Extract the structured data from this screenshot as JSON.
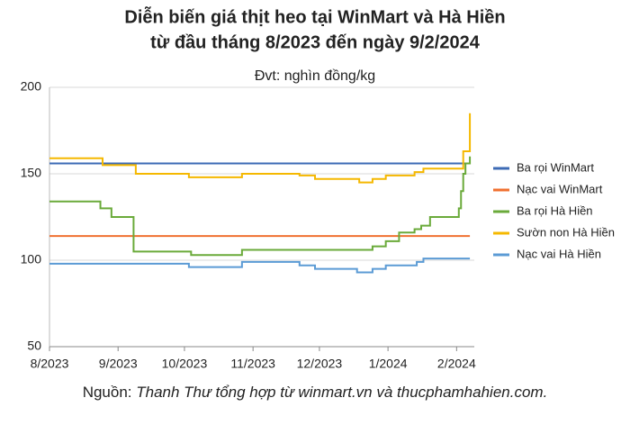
{
  "chart_data": {
    "type": "line",
    "title": [
      "Diễn biến giá thịt heo tại WinMart và Hà Hiền",
      "từ đầu tháng 8/2023 đến ngày 9/2/2024"
    ],
    "subtitle": "Đvt: nghìn đồng/kg",
    "source_label": "Nguồn: ",
    "source_text": "Thanh Thư tổng hợp từ winmart.vn và thucphamhahien.com.",
    "step": "after",
    "grid": true,
    "legend": "right",
    "xlim": [
      0,
      192
    ],
    "xticks": [
      {
        "value": 0,
        "label": "8/2023"
      },
      {
        "value": 31,
        "label": "9/2023"
      },
      {
        "value": 61,
        "label": "10/2023"
      },
      {
        "value": 92,
        "label": "11/2023"
      },
      {
        "value": 122,
        "label": "12/2023"
      },
      {
        "value": 153,
        "label": "1/2024"
      },
      {
        "value": 184,
        "label": "2/2024"
      }
    ],
    "ylim": [
      50,
      200
    ],
    "yticks": [
      50,
      100,
      150,
      200
    ],
    "series": [
      {
        "name": "Ba rọi WinMart",
        "color": "#3d6bb5",
        "x": [
          0,
          190
        ],
        "values": [
          156,
          156
        ]
      },
      {
        "name": "Nạc vai WinMart",
        "color": "#f07030",
        "x": [
          0,
          190
        ],
        "values": [
          114,
          114
        ]
      },
      {
        "name": "Ba rọi Hà Hiền",
        "color": "#6aaa3a",
        "x": [
          0,
          23,
          28,
          37,
          38,
          64,
          87,
          146,
          152,
          158,
          165,
          168,
          172,
          185,
          186,
          187,
          188,
          189,
          190
        ],
        "values": [
          134,
          130,
          125,
          125,
          105,
          103,
          106,
          108,
          111,
          116,
          118,
          120,
          125,
          130,
          140,
          150,
          156,
          156,
          160
        ]
      },
      {
        "name": "Sườn non Hà Hiền",
        "color": "#f5b800",
        "x": [
          0,
          24,
          39,
          63,
          87,
          113,
          120,
          140,
          146,
          152,
          165,
          169,
          187,
          188,
          190
        ],
        "values": [
          159,
          155,
          150,
          148,
          150,
          149,
          147,
          145,
          147,
          149,
          151,
          153,
          163,
          163,
          185
        ]
      },
      {
        "name": "Nạc vai Hà Hiền",
        "color": "#5b9bd5",
        "x": [
          0,
          63,
          87,
          113,
          120,
          139,
          146,
          152,
          166,
          169,
          190
        ],
        "values": [
          98,
          96,
          99,
          97,
          95,
          93,
          95,
          97,
          99,
          101,
          101
        ]
      }
    ]
  }
}
